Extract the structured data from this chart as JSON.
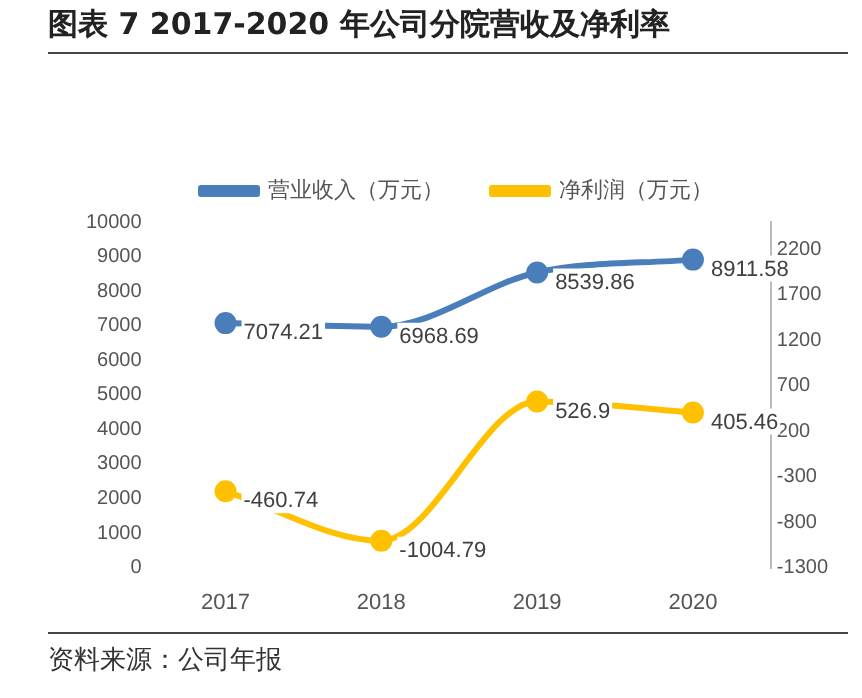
{
  "chart_data": {
    "type": "line",
    "title": "图表 7 2017-2020 年公司分院营收及净利率",
    "categories": [
      "2017",
      "2018",
      "2019",
      "2020"
    ],
    "series": [
      {
        "name": "营业收入（万元）",
        "color": "#4a7ebb",
        "values": [
          7074.21,
          6968.69,
          8539.86,
          8911.58
        ]
      },
      {
        "name": "净利润（万元）",
        "color": "#ffc000",
        "values": [
          -460.74,
          -1004.79,
          526.9,
          405.46
        ],
        "axis": "y2"
      }
    ],
    "ylim": [
      0,
      10000
    ],
    "yticks": [
      0,
      1000,
      2000,
      3000,
      4000,
      5000,
      6000,
      7000,
      8000,
      9000,
      10000
    ],
    "y2lim": [
      -1300,
      2500
    ],
    "y2ticks": [
      -1300,
      -800,
      -300,
      200,
      700,
      1200,
      1700,
      2200
    ],
    "data_labels": true,
    "legend": "top",
    "grid": false,
    "marker": "circle",
    "line_style": "solid",
    "annotations": [
      "资料来源：公司年报"
    ]
  }
}
